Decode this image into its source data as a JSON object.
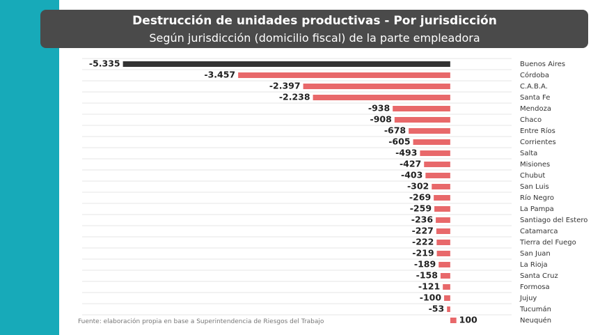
{
  "chart_data": {
    "type": "bar",
    "orientation": "horizontal",
    "title": "Destrucción de unidades productivas - Por jurisdicción",
    "subtitle": "Según jurisdicción (domicilio fiscal) de la parte empleadora",
    "source": "Fuente: elaboración propia en base a Superintendencia de Riesgos del Trabajo",
    "categories": [
      "Buenos Aires",
      "Córdoba",
      "C.A.B.A.",
      "Santa Fe",
      "Mendoza",
      "Chaco",
      "Entre Ríos",
      "Corrientes",
      "Salta",
      "Misiones",
      "Chubut",
      "San Luis",
      "Río Negro",
      "La Pampa",
      "Santiago del Estero",
      "Catamarca",
      "Tierra del Fuego",
      "San Juan",
      "La Rioja",
      "Santa Cruz",
      "Formosa",
      "Jujuy",
      "Tucumán",
      "Neuquén"
    ],
    "values": [
      -5335,
      -3457,
      -2397,
      -2238,
      -938,
      -908,
      -678,
      -605,
      -493,
      -427,
      -403,
      -302,
      -269,
      -259,
      -236,
      -227,
      -222,
      -219,
      -189,
      -158,
      -121,
      -100,
      -53,
      100
    ],
    "value_labels": [
      "-5.335",
      "-3.457",
      "-2.397",
      "-2.238",
      "-938",
      "-908",
      "-678",
      "-605",
      "-493",
      "-427",
      "-403",
      "-302",
      "-269",
      "-259",
      "-236",
      "-227",
      "-222",
      "-219",
      "-189",
      "-158",
      "-121",
      "-100",
      "-53",
      "100"
    ],
    "colors": [
      "#333333",
      "#e8686a",
      "#e8686a",
      "#e8686a",
      "#e8686a",
      "#e8686a",
      "#e8686a",
      "#e8686a",
      "#e8686a",
      "#e8686a",
      "#e8686a",
      "#e8686a",
      "#e8686a",
      "#e8686a",
      "#e8686a",
      "#e8686a",
      "#e8686a",
      "#e8686a",
      "#e8686a",
      "#e8686a",
      "#e8686a",
      "#e8686a",
      "#e8686a",
      "#e8686a"
    ],
    "xlim": [
      -6000,
      1000
    ]
  }
}
